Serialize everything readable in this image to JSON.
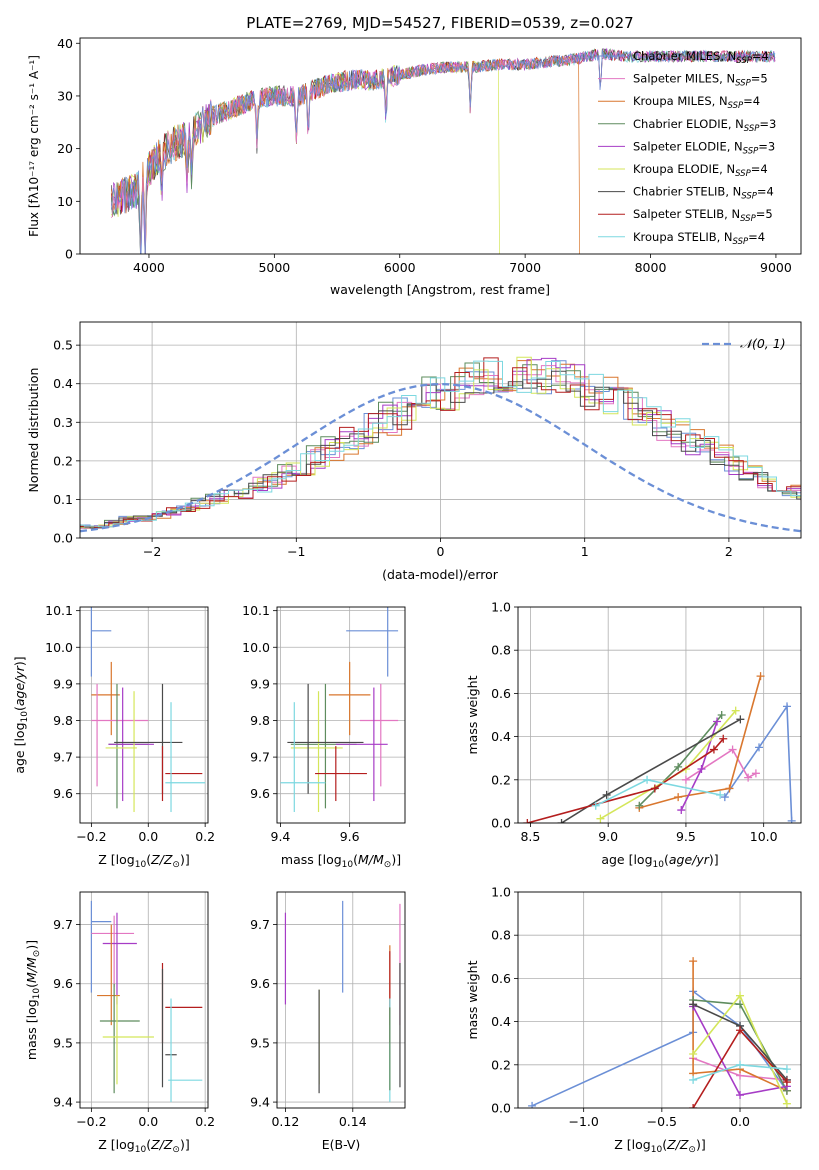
{
  "figure_title": "PLATE=2769, MJD=54527, FIBERID=0539, z=0.027",
  "colors": {
    "Chabrier MILES": "#6b8fd6",
    "Salpeter MILES": "#e377c2",
    "Kroupa MILES": "#d9772e",
    "Chabrier ELODIE": "#5e8c5e",
    "Salpeter ELODIE": "#a63cc6",
    "Kroupa ELODIE": "#d4e65a",
    "Chabrier STELIB": "#4a4a4a",
    "Salpeter STELIB": "#b41e1e",
    "Kroupa STELIB": "#7dd8e0"
  },
  "chart_data": [
    {
      "id": "spectrum",
      "type": "line",
      "title": "PLATE=2769, MJD=54527, FIBERID=0539, z=0.027",
      "xlabel": "wavelength [Angstrom, rest frame]",
      "ylabel": "Flux [f",
      "ylabel_full": "Flux [fλ10⁻¹⁷ erg cm⁻² s⁻¹ A⁻¹]",
      "xlim": [
        3450,
        9200
      ],
      "ylim": [
        0,
        41
      ],
      "xticks": [
        4000,
        5000,
        6000,
        7000,
        8000,
        9000
      ],
      "yticks": [
        0,
        10,
        20,
        30,
        40
      ],
      "grid": false,
      "legend_position": "right",
      "legend": [
        {
          "name": "Chabrier MILES",
          "label": "Chabrier MILES, N",
          "sub": "SSP",
          "tail": "=4"
        },
        {
          "name": "Salpeter MILES",
          "label": "Salpeter MILES, N",
          "sub": "SSP",
          "tail": "=5"
        },
        {
          "name": "Kroupa MILES",
          "label": "Kroupa MILES, N",
          "sub": "SSP",
          "tail": "=4"
        },
        {
          "name": "Chabrier ELODIE",
          "label": "Chabrier ELODIE, N",
          "sub": "SSP",
          "tail": "=3"
        },
        {
          "name": "Salpeter ELODIE",
          "label": "Salpeter ELODIE, N",
          "sub": "SSP",
          "tail": "=3"
        },
        {
          "name": "Kroupa ELODIE",
          "label": "Kroupa ELODIE, N",
          "sub": "SSP",
          "tail": "=4"
        },
        {
          "name": "Chabrier STELIB",
          "label": "Chabrier STELIB, N",
          "sub": "SSP",
          "tail": "=4"
        },
        {
          "name": "Salpeter STELIB",
          "label": "Salpeter STELIB, N",
          "sub": "SSP",
          "tail": "=5"
        },
        {
          "name": "Kroupa STELIB",
          "label": "Kroupa STELIB, N",
          "sub": "SSP",
          "tail": "=4"
        }
      ],
      "continuum": {
        "x": [
          3700,
          3800,
          3900,
          4000,
          4100,
          4200,
          4300,
          4400,
          4500,
          4600,
          4800,
          5000,
          5200,
          5400,
          5600,
          5800,
          6000,
          6200,
          6400,
          6600,
          6800,
          7000,
          7200,
          7400,
          7600,
          7800,
          8000,
          8200,
          8400,
          8600,
          8800,
          9000
        ],
        "y": [
          10,
          11,
          12,
          16,
          19,
          21,
          22,
          24,
          26,
          27,
          29,
          30,
          30,
          32,
          33,
          33,
          34,
          35,
          35.5,
          35.5,
          36,
          36,
          36.5,
          37,
          38,
          37.5,
          37.5,
          37.5,
          37.5,
          37.5,
          37.5,
          37.5
        ]
      },
      "absorption_lines": [
        3934,
        3969,
        4102,
        4304,
        4340,
        4861,
        5175,
        5270,
        5890,
        6563,
        7600
      ],
      "dropouts": [
        {
          "series": "Kroupa ELODIE",
          "x": 6795
        },
        {
          "series": "Kroupa MILES",
          "x": 7430
        }
      ]
    },
    {
      "id": "residual-histogram",
      "type": "step",
      "xlabel": "(data-model)/error",
      "ylabel": "Normed distribution",
      "xlim": [
        -2.5,
        2.5
      ],
      "ylim": [
        0,
        0.56
      ],
      "xticks": [
        -2,
        -1,
        0,
        1,
        2
      ],
      "yticks": [
        0.0,
        0.1,
        0.2,
        0.3,
        0.4,
        0.5
      ],
      "grid": true,
      "legend_position": "top-right",
      "legend_label": "𝒩(0, 1)",
      "reference_curve": {
        "type": "normal",
        "mean": 0,
        "sigma": 1,
        "color": "#6b8fd6"
      },
      "bin_width": 0.1,
      "envelope": [
        0.03,
        0.03,
        0.03,
        0.04,
        0.05,
        0.05,
        0.06,
        0.07,
        0.08,
        0.09,
        0.1,
        0.11,
        0.12,
        0.14,
        0.15,
        0.17,
        0.19,
        0.21,
        0.23,
        0.25,
        0.27,
        0.29,
        0.31,
        0.33,
        0.35,
        0.37,
        0.38,
        0.4,
        0.41,
        0.42,
        0.42,
        0.42,
        0.42,
        0.42,
        0.41,
        0.4,
        0.38,
        0.37,
        0.35,
        0.33,
        0.31,
        0.29,
        0.27,
        0.25,
        0.23,
        0.21,
        0.19,
        0.17,
        0.15,
        0.14,
        0.12,
        0.11,
        0.1,
        0.09,
        0.08,
        0.07,
        0.06,
        0.05,
        0.05,
        0.04
      ]
    },
    {
      "id": "age-vs-Z",
      "type": "scatter",
      "xlabel": "Z [log",
      "ylabel": "age  [log",
      "xlim": [
        -0.24,
        0.21
      ],
      "ylim": [
        9.52,
        10.11
      ],
      "xticks": [
        -0.2,
        0.0,
        0.2
      ],
      "yticks": [
        9.6,
        9.7,
        9.8,
        9.9,
        10.0,
        10.1
      ],
      "grid": true,
      "points": [
        {
          "series": "Chabrier MILES",
          "x": -0.2,
          "xe": [
            -0.2,
            -0.13
          ],
          "y": 10.045,
          "ye": [
            9.92,
            10.11
          ]
        },
        {
          "series": "Kroupa MILES",
          "x": -0.13,
          "xe": [
            -0.2,
            -0.1
          ],
          "y": 9.87,
          "ye": [
            9.76,
            9.96
          ]
        },
        {
          "series": "Salpeter MILES",
          "x": -0.18,
          "xe": [
            -0.2,
            0.0
          ],
          "y": 9.8,
          "ye": [
            9.62,
            9.9
          ]
        },
        {
          "series": "Chabrier ELODIE",
          "x": -0.11,
          "xe": [
            -0.14,
            0.0
          ],
          "y": 9.735,
          "ye": [
            9.56,
            9.9
          ]
        },
        {
          "series": "Salpeter ELODIE",
          "x": -0.09,
          "xe": [
            -0.14,
            0.02
          ],
          "y": 9.735,
          "ye": [
            9.58,
            9.89
          ]
        },
        {
          "series": "Kroupa ELODIE",
          "x": -0.05,
          "xe": [
            -0.15,
            -0.04
          ],
          "y": 9.725,
          "ye": [
            9.55,
            9.88
          ]
        },
        {
          "series": "Chabrier STELIB",
          "x": 0.05,
          "xe": [
            -0.12,
            0.12
          ],
          "y": 9.74,
          "ye": [
            9.6,
            9.9
          ]
        },
        {
          "series": "Salpeter STELIB",
          "x": 0.05,
          "xe": [
            0.06,
            0.19
          ],
          "y": 9.655,
          "ye": [
            9.58,
            9.73
          ]
        },
        {
          "series": "Kroupa STELIB",
          "x": 0.08,
          "xe": [
            0.06,
            0.2
          ],
          "y": 9.63,
          "ye": [
            9.55,
            9.85
          ]
        }
      ]
    },
    {
      "id": "age-vs-mass",
      "type": "scatter",
      "xlabel": "mass [log",
      "ylabel": "",
      "xlim": [
        9.39,
        9.76
      ],
      "ylim": [
        9.52,
        10.11
      ],
      "xticks": [
        9.4,
        9.6
      ],
      "yticks": [
        9.6,
        9.7,
        9.8,
        9.9,
        10.0,
        10.1
      ],
      "grid": true,
      "points": [
        {
          "series": "Chabrier MILES",
          "x": 9.71,
          "xe": [
            9.59,
            9.74
          ],
          "y": 10.045,
          "ye": [
            9.92,
            10.11
          ]
        },
        {
          "series": "Kroupa MILES",
          "x": 9.6,
          "xe": [
            9.54,
            9.66
          ],
          "y": 9.87,
          "ye": [
            9.76,
            9.96
          ]
        },
        {
          "series": "Salpeter MILES",
          "x": 9.69,
          "xe": [
            9.63,
            9.74
          ],
          "y": 9.8,
          "ye": [
            9.62,
            9.9
          ]
        },
        {
          "series": "Chabrier ELODIE",
          "x": 9.53,
          "xe": [
            9.43,
            9.62
          ],
          "y": 9.735,
          "ye": [
            9.56,
            9.9
          ]
        },
        {
          "series": "Salpeter ELODIE",
          "x": 9.67,
          "xe": [
            9.56,
            9.71
          ],
          "y": 9.735,
          "ye": [
            9.58,
            9.89
          ]
        },
        {
          "series": "Kroupa ELODIE",
          "x": 9.51,
          "xe": [
            9.43,
            9.58
          ],
          "y": 9.725,
          "ye": [
            9.55,
            9.88
          ]
        },
        {
          "series": "Chabrier STELIB",
          "x": 9.48,
          "xe": [
            9.42,
            9.64
          ],
          "y": 9.74,
          "ye": [
            9.6,
            9.9
          ]
        },
        {
          "series": "Salpeter STELIB",
          "x": 9.56,
          "xe": [
            9.5,
            9.65
          ],
          "y": 9.655,
          "ye": [
            9.58,
            9.73
          ]
        },
        {
          "series": "Kroupa STELIB",
          "x": 9.44,
          "xe": [
            9.4,
            9.53
          ],
          "y": 9.63,
          "ye": [
            9.55,
            9.85
          ]
        }
      ]
    },
    {
      "id": "weight-vs-age",
      "type": "line",
      "xlabel": "age  [log",
      "ylabel": "mass weight",
      "xlim": [
        8.42,
        10.24
      ],
      "ylim": [
        0,
        1.0
      ],
      "xticks": [
        8.5,
        9.0,
        9.5,
        10.0
      ],
      "yticks": [
        0.0,
        0.2,
        0.4,
        0.6,
        0.8,
        1.0
      ],
      "grid": true,
      "series": [
        {
          "name": "Chabrier MILES",
          "x": [
            9.75,
            9.97,
            10.15,
            10.18
          ],
          "y": [
            0.12,
            0.35,
            0.54,
            0.01
          ]
        },
        {
          "name": "Salpeter MILES",
          "x": [
            9.5,
            9.8,
            9.9,
            9.95
          ],
          "y": [
            0.2,
            0.34,
            0.21,
            0.23
          ]
        },
        {
          "name": "Kroupa MILES",
          "x": [
            9.2,
            9.45,
            9.78,
            9.98
          ],
          "y": [
            0.07,
            0.12,
            0.16,
            0.68
          ]
        },
        {
          "name": "Chabrier ELODIE",
          "x": [
            9.2,
            9.45,
            9.73
          ],
          "y": [
            0.08,
            0.26,
            0.5
          ]
        },
        {
          "name": "Salpeter ELODIE",
          "x": [
            9.47,
            9.6,
            9.7
          ],
          "y": [
            0.06,
            0.25,
            0.47
          ]
        },
        {
          "name": "Kroupa ELODIE",
          "x": [
            8.95,
            9.5,
            9.82
          ],
          "y": [
            0.02,
            0.25,
            0.52
          ]
        },
        {
          "name": "Chabrier STELIB",
          "x": [
            8.7,
            8.99,
            9.85
          ],
          "y": [
            0.0,
            0.13,
            0.48
          ]
        },
        {
          "name": "Salpeter STELIB",
          "x": [
            8.48,
            9.3,
            9.68,
            9.74
          ],
          "y": [
            0.0,
            0.16,
            0.34,
            0.39
          ]
        },
        {
          "name": "Kroupa STELIB",
          "x": [
            8.92,
            9.25,
            9.72
          ],
          "y": [
            0.08,
            0.2,
            0.13
          ]
        }
      ]
    },
    {
      "id": "mass-vs-Z",
      "type": "scatter",
      "xlabel": "Z [log",
      "ylabel": "mass [log",
      "xlim": [
        -0.24,
        0.21
      ],
      "ylim": [
        9.39,
        9.755
      ],
      "xticks": [
        -0.2,
        0.0,
        0.2
      ],
      "yticks": [
        9.4,
        9.5,
        9.6,
        9.7
      ],
      "grid": true,
      "points": [
        {
          "series": "Chabrier MILES",
          "x": -0.2,
          "xe": [
            -0.2,
            -0.13
          ],
          "y": 9.705,
          "ye": [
            9.585,
            9.74
          ]
        },
        {
          "series": "Salpeter MILES",
          "x": -0.12,
          "xe": [
            -0.2,
            -0.05
          ],
          "y": 9.685,
          "ye": [
            9.595,
            9.715
          ]
        },
        {
          "series": "Salpeter ELODIE",
          "x": -0.11,
          "xe": [
            -0.16,
            -0.04
          ],
          "y": 9.668,
          "ye": [
            9.565,
            9.72
          ]
        },
        {
          "series": "Kroupa MILES",
          "x": -0.13,
          "xe": [
            -0.18,
            -0.1
          ],
          "y": 9.58,
          "ye": [
            9.53,
            9.7
          ]
        },
        {
          "series": "Chabrier ELODIE",
          "x": -0.12,
          "xe": [
            -0.17,
            -0.03
          ],
          "y": 9.537,
          "ye": [
            9.415,
            9.6
          ]
        },
        {
          "series": "Kroupa ELODIE",
          "x": -0.11,
          "xe": [
            -0.16,
            0.02
          ],
          "y": 9.51,
          "ye": [
            9.43,
            9.58
          ]
        },
        {
          "series": "Salpeter STELIB",
          "x": 0.05,
          "xe": [
            0.06,
            0.19
          ],
          "y": 9.56,
          "ye": [
            9.5,
            9.635
          ]
        },
        {
          "series": "Chabrier STELIB",
          "x": 0.05,
          "xe": [
            0.06,
            0.1
          ],
          "y": 9.48,
          "ye": [
            9.425,
            9.625
          ]
        },
        {
          "series": "Kroupa STELIB",
          "x": 0.08,
          "xe": [
            0.07,
            0.19
          ],
          "y": 9.437,
          "ye": [
            9.4,
            9.575
          ]
        }
      ]
    },
    {
      "id": "mass-vs-EBV",
      "type": "scatter",
      "xlabel": "E(B-V)",
      "ylabel": "",
      "xlim": [
        0.1175,
        0.1555
      ],
      "ylim": [
        9.39,
        9.755
      ],
      "xticks": [
        0.12,
        0.14
      ],
      "yticks": [
        9.4,
        9.5,
        9.6,
        9.7
      ],
      "grid": true,
      "points": [
        {
          "series": "Salpeter ELODIE",
          "x": 0.12,
          "ye": [
            9.565,
            9.72
          ]
        },
        {
          "series": "Kroupa ELODIE",
          "x": 0.13,
          "ye": [
            9.43,
            9.59
          ]
        },
        {
          "series": "Chabrier STELIB",
          "x": 0.13,
          "ye": [
            9.415,
            9.59
          ]
        },
        {
          "series": "Chabrier MILES",
          "x": 0.137,
          "ye": [
            9.585,
            9.74
          ]
        },
        {
          "series": "Kroupa MILES",
          "x": 0.151,
          "ye": [
            9.53,
            9.665
          ]
        },
        {
          "series": "Salpeter STELIB",
          "x": 0.151,
          "ye": [
            9.5,
            9.655
          ]
        },
        {
          "series": "Kroupa STELIB",
          "x": 0.151,
          "ye": [
            9.4,
            9.575
          ]
        },
        {
          "series": "Chabrier ELODIE",
          "x": 0.151,
          "ye": [
            9.42,
            9.56
          ]
        },
        {
          "series": "Salpeter MILES",
          "x": 0.154,
          "ye": [
            9.53,
            9.735
          ]
        },
        {
          "series": "Chabrier STELIB",
          "x": 0.154,
          "ye": [
            9.425,
            9.635
          ]
        }
      ]
    },
    {
      "id": "weight-vs-Z",
      "type": "line",
      "xlabel": "Z [log",
      "ylabel": "mass weight",
      "xlim": [
        -1.42,
        0.39
      ],
      "ylim": [
        0,
        1.0
      ],
      "xticks": [
        -1.0,
        -0.5,
        0.0
      ],
      "yticks": [
        0.0,
        0.2,
        0.4,
        0.6,
        0.8,
        1.0
      ],
      "grid": true,
      "series": [
        {
          "name": "Chabrier MILES",
          "x": [
            -1.33,
            -0.3,
            -0.3,
            0.0,
            0.3
          ],
          "y": [
            0.01,
            0.35,
            0.54,
            0.38,
            0.08
          ]
        },
        {
          "name": "Salpeter MILES",
          "x": [
            -0.3,
            0.0,
            0.3
          ],
          "y": [
            0.23,
            0.15,
            0.13
          ]
        },
        {
          "name": "Kroupa MILES",
          "x": [
            -0.3,
            -0.3,
            0.0,
            0.3
          ],
          "y": [
            0.68,
            0.16,
            0.18,
            0.08
          ]
        },
        {
          "name": "Chabrier ELODIE",
          "x": [
            -0.3,
            0.0,
            0.3
          ],
          "y": [
            0.5,
            0.48,
            0.08
          ]
        },
        {
          "name": "Salpeter ELODIE",
          "x": [
            -0.3,
            0.0,
            0.3
          ],
          "y": [
            0.47,
            0.06,
            0.1
          ]
        },
        {
          "name": "Kroupa ELODIE",
          "x": [
            -0.3,
            0.0,
            0.3
          ],
          "y": [
            0.25,
            0.52,
            0.02
          ]
        },
        {
          "name": "Chabrier STELIB",
          "x": [
            -0.3,
            0.0,
            0.3
          ],
          "y": [
            0.48,
            0.38,
            0.13
          ]
        },
        {
          "name": "Salpeter STELIB",
          "x": [
            -0.3,
            0.0,
            0.3
          ],
          "y": [
            0.0,
            0.36,
            0.12
          ]
        },
        {
          "name": "Kroupa STELIB",
          "x": [
            -0.3,
            0.0,
            0.3
          ],
          "y": [
            0.13,
            0.2,
            0.18
          ]
        }
      ]
    }
  ]
}
